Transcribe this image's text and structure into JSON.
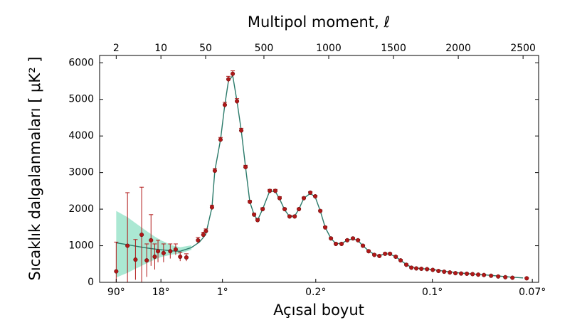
{
  "chart_data": {
    "type": "errorbar",
    "title": "Multipol moment, ℓ",
    "x_label": "Açısal boyut",
    "y_label": "Sıcaklık dalgalanmaları [ μK² ]",
    "x_scale": {
      "type": "log-linear",
      "split": 50
    },
    "xlim": [
      1.1,
      2620
    ],
    "ylim": [
      0,
      6200
    ],
    "xticks": [
      2,
      10,
      50,
      500,
      1000,
      1500,
      2000,
      2500
    ],
    "x2ticks": [
      {
        "value": 90,
        "label": "90°"
      },
      {
        "value": 18,
        "label": "18°"
      },
      {
        "value": 1,
        "label": "1°"
      },
      {
        "value": 0.2,
        "label": "0.2°"
      },
      {
        "value": 0.1,
        "label": "0.1°"
      },
      {
        "value": 0.07,
        "label": "0.07°"
      }
    ],
    "yticks": [
      0,
      1000,
      2000,
      3000,
      4000,
      5000,
      6000
    ],
    "data": {
      "color": "#b01818",
      "x": [
        2,
        3,
        4,
        5,
        6,
        7,
        8,
        9,
        11,
        14,
        17,
        20,
        25,
        38,
        46,
        52,
        99,
        121,
        165,
        198,
        226,
        259,
        292,
        325,
        358,
        391,
        424,
        451,
        490,
        545,
        588,
        621,
        660,
        698,
        737,
        770,
        808,
        858,
        896,
        935,
        973,
        1017,
        1055,
        1099,
        1143,
        1187,
        1226,
        1264,
        1308,
        1352,
        1391,
        1435,
        1473,
        1517,
        1555,
        1599,
        1638,
        1676,
        1715,
        1759,
        1803,
        1847,
        1891,
        1935,
        1978,
        2022,
        2066,
        2110,
        2154,
        2198,
        2253,
        2308,
        2363,
        2418,
        2528
      ],
      "values": [
        300,
        1000,
        620,
        1300,
        600,
        1150,
        700,
        850,
        800,
        850,
        900,
        700,
        680,
        1150,
        1300,
        1400,
        2050,
        3050,
        3900,
        4850,
        5550,
        5700,
        4950,
        4150,
        3150,
        2200,
        1850,
        1700,
        2000,
        2500,
        2500,
        2300,
        2000,
        1800,
        1800,
        2000,
        2300,
        2450,
        2350,
        1950,
        1500,
        1200,
        1050,
        1050,
        1150,
        1200,
        1150,
        1000,
        850,
        750,
        720,
        780,
        780,
        700,
        600,
        480,
        400,
        380,
        370,
        360,
        340,
        310,
        290,
        270,
        250,
        240,
        235,
        225,
        210,
        200,
        180,
        160,
        140,
        125,
        110
      ],
      "errors": [
        800,
        1450,
        550,
        1300,
        450,
        700,
        350,
        300,
        250,
        200,
        150,
        120,
        100,
        80,
        70,
        60,
        60,
        60,
        60,
        70,
        80,
        80,
        70,
        60,
        50,
        40,
        40,
        40,
        40,
        40,
        40,
        40,
        30,
        30,
        30,
        30,
        30,
        30,
        30,
        30,
        30,
        25,
        25,
        25,
        25,
        25,
        25,
        25,
        25,
        25,
        25,
        25,
        25,
        25,
        25,
        25,
        25,
        20,
        20,
        20,
        20,
        20,
        20,
        20,
        20,
        20,
        20,
        20,
        20,
        20,
        20,
        20,
        20,
        20,
        20
      ]
    },
    "model": {
      "color": "#2a7a6a",
      "x": [
        2,
        3,
        4,
        6,
        8,
        10,
        15,
        20,
        30,
        40,
        50,
        70,
        99,
        121,
        165,
        198,
        226,
        259,
        292,
        325,
        358,
        391,
        424,
        451,
        490,
        545,
        588,
        621,
        660,
        698,
        737,
        770,
        808,
        858,
        896,
        935,
        973,
        1017,
        1055,
        1099,
        1143,
        1187,
        1226,
        1264,
        1308,
        1352,
        1391,
        1435,
        1473,
        1517,
        1555,
        1599,
        1638,
        1700,
        1800,
        1900,
        2000,
        2100,
        2200,
        2300,
        2400,
        2500
      ],
      "values": [
        1080,
        1030,
        990,
        940,
        910,
        890,
        860,
        850,
        950,
        1100,
        1300,
        1600,
        2050,
        3050,
        3900,
        4850,
        5500,
        5650,
        4950,
        4150,
        3150,
        2200,
        1850,
        1700,
        2000,
        2500,
        2480,
        2280,
        1980,
        1800,
        1810,
        2000,
        2300,
        2430,
        2330,
        1950,
        1500,
        1200,
        1060,
        1060,
        1150,
        1190,
        1140,
        1000,
        860,
        760,
        730,
        780,
        770,
        700,
        600,
        490,
        410,
        380,
        350,
        300,
        260,
        230,
        205,
        175,
        145,
        120
      ]
    },
    "band": {
      "color": "#8fe0c4",
      "x": [
        2,
        3,
        4,
        6,
        8,
        10,
        15,
        20,
        30
      ],
      "lower": [
        130,
        260,
        370,
        520,
        620,
        690,
        760,
        790,
        890
      ],
      "upper": [
        1950,
        1780,
        1620,
        1400,
        1250,
        1150,
        1010,
        960,
        1010
      ]
    }
  }
}
